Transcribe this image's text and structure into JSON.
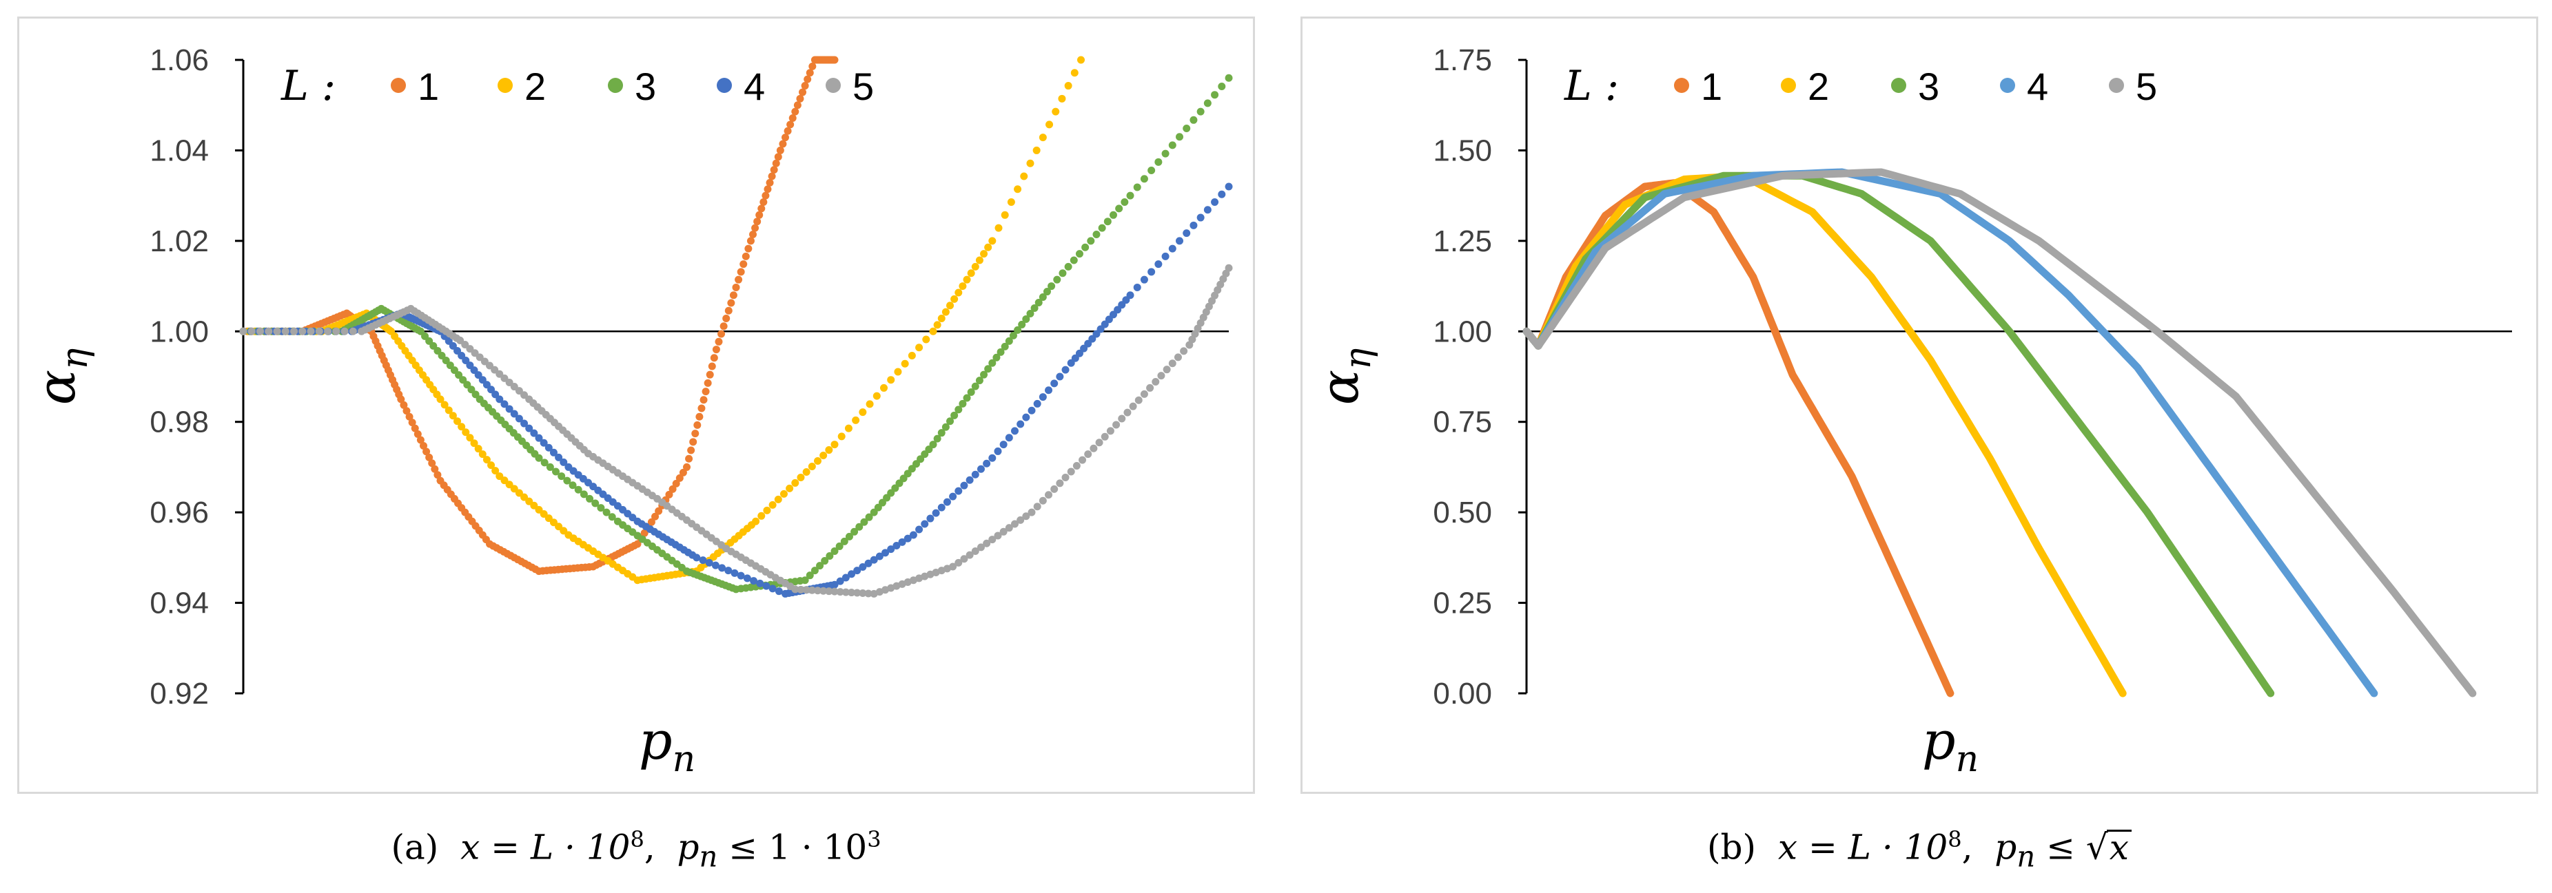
{
  "chart_data": [
    {
      "type": "scatter",
      "panel": "a",
      "xlabel": "p",
      "xlabel_subscript": "n",
      "ylabel": "α",
      "ylabel_subscript": "η",
      "ylim": [
        0.92,
        1.06
      ],
      "yticks": [
        "0.92",
        "0.94",
        "0.96",
        "0.98",
        "1.00",
        "1.02",
        "1.04",
        "1.06"
      ],
      "xlim": [
        0,
        1000
      ],
      "reference_line_y": 1.0,
      "legend": {
        "title": "L :",
        "placement": "top"
      },
      "series": [
        {
          "name": "1",
          "color": "#ED7D31",
          "x": [
            0,
            60,
            105,
            130,
            160,
            200,
            250,
            300,
            355,
            400,
            450,
            480,
            515,
            545,
            580,
            600
          ],
          "y": [
            1.0,
            1.0,
            1.004,
            1.0,
            0.985,
            0.967,
            0.953,
            0.947,
            0.948,
            0.953,
            0.97,
            0.996,
            1.02,
            1.04,
            1.06,
            1.06
          ]
        },
        {
          "name": "2",
          "color": "#FFC000",
          "x": [
            0,
            80,
            125,
            150,
            200,
            260,
            330,
            400,
            460,
            520,
            600,
            700,
            760,
            850
          ],
          "y": [
            1.0,
            1.0,
            1.004,
            1.0,
            0.985,
            0.968,
            0.955,
            0.945,
            0.947,
            0.958,
            0.975,
            1.0,
            1.02,
            1.06
          ]
        },
        {
          "name": "3",
          "color": "#70AD47",
          "x": [
            0,
            100,
            140,
            180,
            240,
            300,
            380,
            450,
            500,
            570,
            640,
            700,
            760,
            820,
            900,
            1000
          ],
          "y": [
            1.0,
            1.0,
            1.005,
            1.0,
            0.985,
            0.972,
            0.958,
            0.947,
            0.943,
            0.945,
            0.96,
            0.975,
            0.993,
            1.01,
            1.03,
            1.056
          ]
        },
        {
          "name": "4",
          "color": "#4472C4",
          "x": [
            0,
            110,
            160,
            200,
            260,
            330,
            400,
            460,
            550,
            600,
            680,
            760,
            840,
            900,
            1000
          ],
          "y": [
            1.0,
            1.0,
            1.004,
            1.0,
            0.985,
            0.97,
            0.958,
            0.95,
            0.942,
            0.944,
            0.955,
            0.972,
            0.993,
            1.008,
            1.032
          ]
        },
        {
          "name": "5",
          "color": "#A5A5A5",
          "x": [
            0,
            120,
            170,
            220,
            290,
            350,
            420,
            490,
            560,
            640,
            720,
            800,
            880,
            960,
            1000
          ],
          "y": [
            1.0,
            1.0,
            1.005,
            0.998,
            0.985,
            0.973,
            0.963,
            0.952,
            0.943,
            0.942,
            0.948,
            0.96,
            0.978,
            0.997,
            1.014
          ]
        }
      ]
    },
    {
      "type": "line",
      "panel": "b",
      "xlabel": "p",
      "xlabel_subscript": "n",
      "ylabel": "α",
      "ylabel_subscript": "η",
      "ylim": [
        0,
        1.75
      ],
      "yticks": [
        "0.00",
        "0.25",
        "0.50",
        "0.75",
        "1.00",
        "1.25",
        "1.50",
        "1.75"
      ],
      "xlim": [
        0,
        1000
      ],
      "reference_line_y": 1.0,
      "legend": {
        "title": "L :",
        "placement": "top"
      },
      "series": [
        {
          "name": "1",
          "color": "#ED7D31",
          "x": [
            0,
            12,
            40,
            80,
            120,
            150,
            190,
            230,
            270,
            330,
            380,
            430
          ],
          "y": [
            1.0,
            0.96,
            1.15,
            1.32,
            1.4,
            1.41,
            1.33,
            1.15,
            0.88,
            0.6,
            0.3,
            0.0
          ]
        },
        {
          "name": "2",
          "color": "#FFC000",
          "x": [
            0,
            12,
            50,
            100,
            160,
            220,
            290,
            350,
            410,
            470,
            520,
            605
          ],
          "y": [
            1.0,
            0.96,
            1.18,
            1.35,
            1.42,
            1.43,
            1.33,
            1.15,
            0.92,
            0.65,
            0.4,
            0.0
          ]
        },
        {
          "name": "3",
          "color": "#70AD47",
          "x": [
            0,
            12,
            60,
            120,
            200,
            280,
            340,
            410,
            490,
            560,
            630,
            680,
            755
          ],
          "y": [
            1.0,
            0.96,
            1.2,
            1.37,
            1.43,
            1.43,
            1.38,
            1.25,
            1.0,
            0.75,
            0.5,
            0.3,
            0.0
          ]
        },
        {
          "name": "4",
          "color": "#5B9BD5",
          "x": [
            0,
            12,
            70,
            140,
            230,
            320,
            420,
            490,
            550,
            620,
            700,
            780,
            860
          ],
          "y": [
            1.0,
            0.96,
            1.22,
            1.38,
            1.43,
            1.44,
            1.38,
            1.25,
            1.1,
            0.9,
            0.6,
            0.3,
            0.0
          ]
        },
        {
          "name": "5",
          "color": "#A5A5A5",
          "x": [
            0,
            12,
            80,
            160,
            260,
            360,
            440,
            520,
            640,
            720,
            800,
            880,
            960
          ],
          "y": [
            1.0,
            0.96,
            1.23,
            1.37,
            1.43,
            1.44,
            1.38,
            1.25,
            1.0,
            0.82,
            0.55,
            0.28,
            0.0
          ]
        }
      ]
    }
  ],
  "captions": {
    "a": {
      "label": "(a)",
      "x_expr": "x = L · 10",
      "x_exp": "8",
      "p_expr": "p",
      "p_sub": "n",
      "rel": "≤ 1 · 10",
      "rel_exp": "3"
    },
    "b": {
      "label": "(b)",
      "x_expr": "x = L · 10",
      "x_exp": "8",
      "p_expr": "p",
      "p_sub": "n",
      "rel": "≤",
      "sqrt_arg": "x"
    }
  }
}
